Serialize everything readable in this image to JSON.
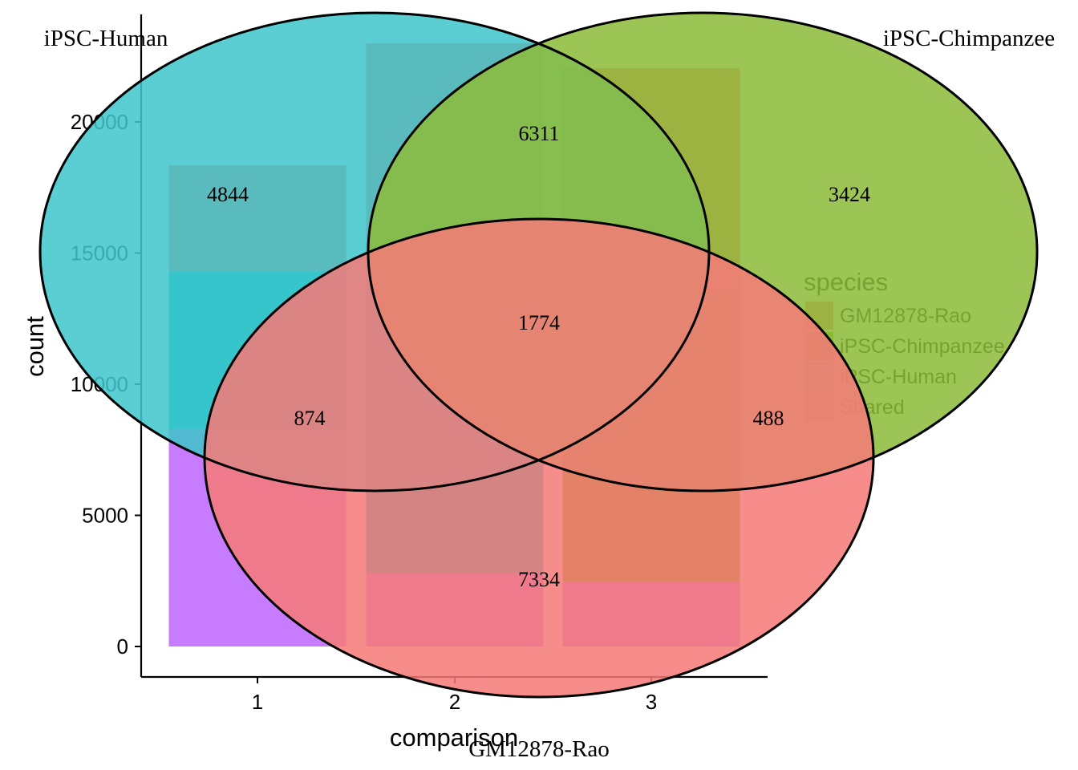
{
  "chart_data": [
    {
      "type": "bar",
      "xlabel": "comparison",
      "ylabel": "count",
      "categories": [
        "1",
        "2",
        "3"
      ],
      "ylim": [
        0,
        23500
      ],
      "yticks": [
        0,
        5000,
        10000,
        15000,
        20000
      ],
      "grid": false,
      "legend": {
        "title": "species",
        "placement": "right",
        "entries": [
          "GM12878-Rao",
          "iPSC-Chimpanzee",
          "iPSC-Human",
          "Shared"
        ]
      },
      "series": [
        {
          "name": "Shared",
          "color": "#C77CFF",
          "values": [
            8300,
            2800,
            2450
          ]
        },
        {
          "name": "iPSC-Human",
          "color": "#00BFC4",
          "values": [
            6000,
            12000,
            0
          ]
        },
        {
          "name": "iPSC-Chimpanzee",
          "color": "#7CAE00",
          "values": [
            0,
            0,
            11000
          ]
        },
        {
          "name": "GM12878-Rao",
          "color": "#F8766D",
          "values": [
            4050,
            8200,
            8600
          ]
        }
      ]
    },
    {
      "type": "venn",
      "sets": [
        {
          "name": "iPSC-Human",
          "color": "#3FC6CB"
        },
        {
          "name": "iPSC-Chimpanzee",
          "color": "#8DBB3A"
        },
        {
          "name": "GM12878-Rao",
          "color": "#F67A78"
        }
      ],
      "regions": [
        {
          "label": "iPSC-Human only",
          "value": "4844"
        },
        {
          "label": "iPSC-Chimpanzee only",
          "value": "3424"
        },
        {
          "label": "GM12878-Rao only",
          "value": "7334"
        },
        {
          "label": "iPSC-Human & iPSC-Chimpanzee",
          "value": "6311"
        },
        {
          "label": "iPSC-Human & GM12878-Rao",
          "value": "874"
        },
        {
          "label": "iPSC-Chimpanzee & GM12878-Rao",
          "value": "488"
        },
        {
          "label": "all three",
          "value": "1774"
        }
      ]
    }
  ]
}
